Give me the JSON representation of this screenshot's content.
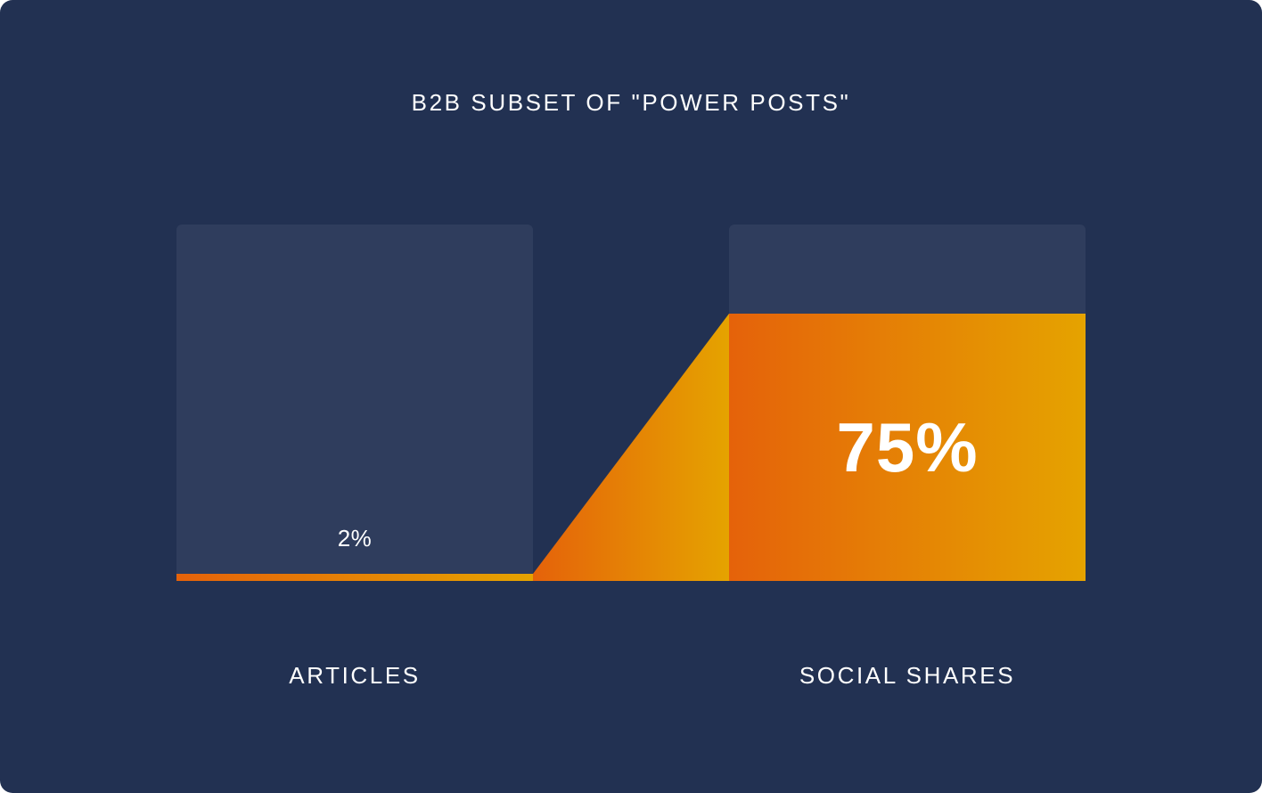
{
  "chart_data": {
    "type": "bar",
    "title": "B2B SUBSET OF \"POWER POSTS\"",
    "categories": [
      "ARTICLES",
      "SOCIAL SHARES"
    ],
    "values": [
      2,
      75
    ],
    "value_labels": [
      "2%",
      "75%"
    ],
    "unit": "%",
    "ylim": [
      0,
      100
    ],
    "grid": false,
    "legend": "none"
  },
  "colors": {
    "background": "#223152",
    "track": "#2f3d5d",
    "gradient_start": "#e5620a",
    "gradient_end": "#e5a300",
    "text": "#ffffff"
  }
}
